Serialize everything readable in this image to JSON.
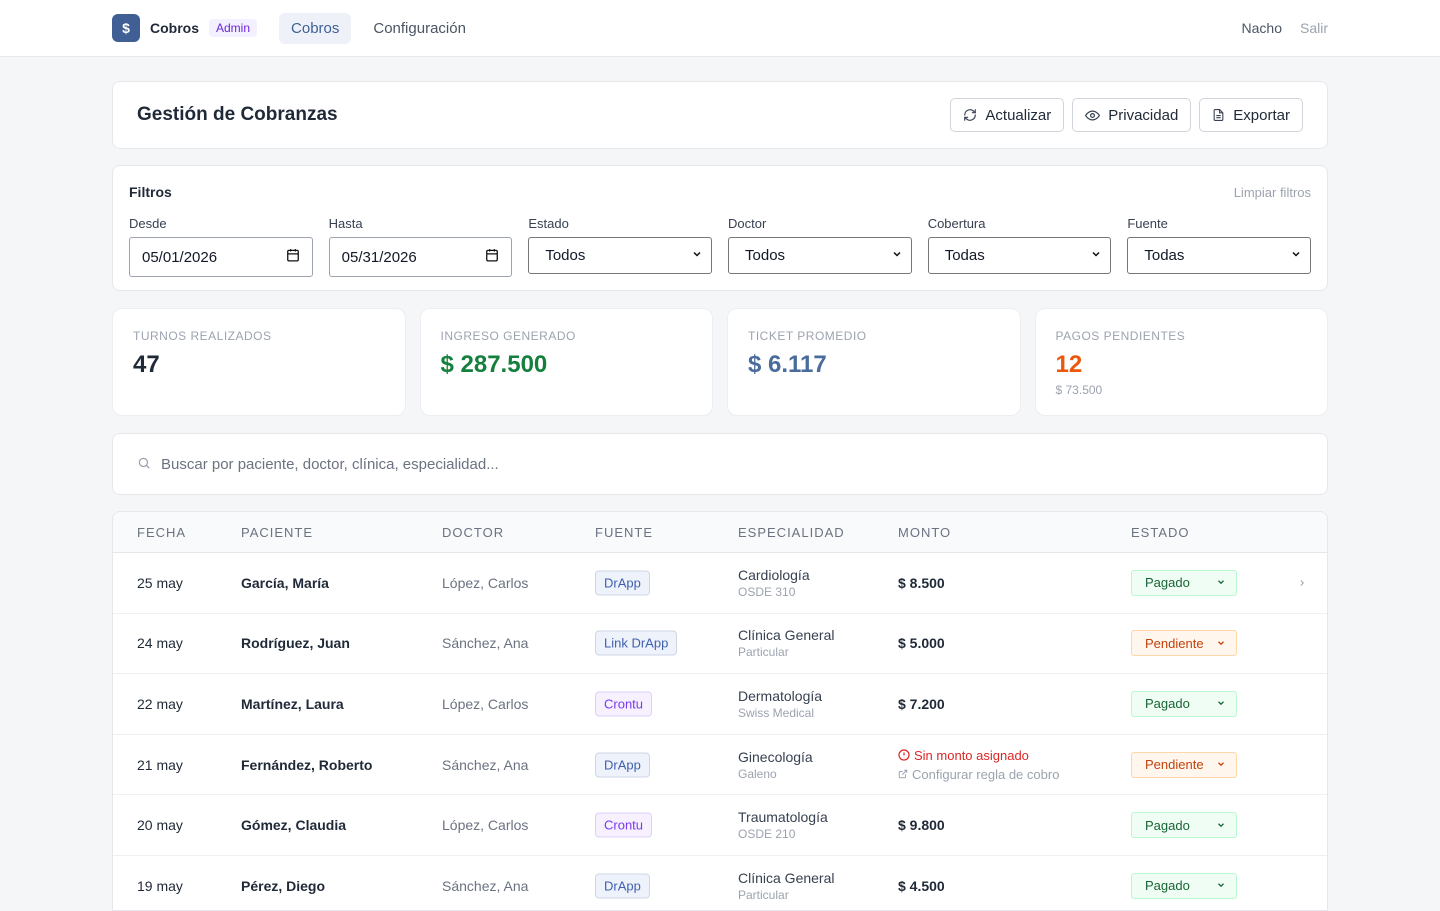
{
  "nav": {
    "logo_glyph": "$",
    "brand": "Cobros",
    "role_badge": "Admin",
    "tabs": [
      {
        "label": "Cobros",
        "active": true
      },
      {
        "label": "Configuración",
        "active": false
      }
    ],
    "user": "Nacho",
    "logout": "Salir"
  },
  "header": {
    "title": "Gestión de Cobranzas",
    "buttons": {
      "refresh": "Actualizar",
      "privacy": "Privacidad",
      "export": "Exportar"
    }
  },
  "filters": {
    "title": "Filtros",
    "clear": "Limpiar filtros",
    "from": {
      "label": "Desde",
      "value": "05/01/2026"
    },
    "to": {
      "label": "Hasta",
      "value": "05/31/2026"
    },
    "status": {
      "label": "Estado",
      "value": "Todos"
    },
    "doctor": {
      "label": "Doctor",
      "value": "Todos"
    },
    "coverage": {
      "label": "Cobertura",
      "value": "Todas"
    },
    "source": {
      "label": "Fuente",
      "value": "Todas"
    }
  },
  "stats": [
    {
      "label": "Turnos realizados",
      "value": "47",
      "color": "#1f2937",
      "sub": ""
    },
    {
      "label": "Ingreso generado",
      "value": "$ 287.500",
      "color": "#15803d",
      "sub": ""
    },
    {
      "label": "Ticket promedio",
      "value": "$ 6.117",
      "color": "#4a6c9c",
      "sub": ""
    },
    {
      "label": "Pagos pendientes",
      "value": "12",
      "color": "#ea580c",
      "sub": "$ 73.500"
    }
  ],
  "search": {
    "placeholder": "Buscar por paciente, doctor, clínica, especialidad..."
  },
  "table": {
    "columns": {
      "date": "Fecha",
      "patient": "Paciente",
      "doctor": "Doctor",
      "source": "Fuente",
      "specialty": "Especialidad",
      "amount": "Monto",
      "status": "Estado"
    },
    "rows": [
      {
        "date": "25 may",
        "patient": "García, María",
        "doctor": "López, Carlos",
        "source": "DrApp",
        "specialty": "Cardiología",
        "coverage": "OSDE 310",
        "amount": "$ 8.500",
        "status": "Pagado"
      },
      {
        "date": "24 may",
        "patient": "Rodríguez, Juan",
        "doctor": "Sánchez, Ana",
        "source": "Link DrApp",
        "specialty": "Clínica General",
        "coverage": "Particular",
        "amount": "$ 5.000",
        "status": "Pendiente"
      },
      {
        "date": "22 may",
        "patient": "Martínez, Laura",
        "doctor": "López, Carlos",
        "source": "Crontu",
        "specialty": "Dermatología",
        "coverage": "Swiss Medical",
        "amount": "$ 7.200",
        "status": "Pagado"
      },
      {
        "date": "21 may",
        "patient": "Fernández, Roberto",
        "doctor": "Sánchez, Ana",
        "source": "DrApp",
        "specialty": "Ginecología",
        "coverage": "Galeno",
        "amount": "",
        "no_amount": "Sin monto asignado",
        "config_rule": "Configurar regla de cobro",
        "status": "Pendiente"
      },
      {
        "date": "20 may",
        "patient": "Gómez, Claudia",
        "doctor": "López, Carlos",
        "source": "Crontu",
        "specialty": "Traumatología",
        "coverage": "OSDE 210",
        "amount": "$ 9.800",
        "status": "Pagado"
      },
      {
        "date": "19 may",
        "patient": "Pérez, Diego",
        "doctor": "Sánchez, Ana",
        "source": "DrApp",
        "specialty": "Clínica General",
        "coverage": "Particular",
        "amount": "$ 4.500",
        "status": "Pagado"
      }
    ]
  }
}
